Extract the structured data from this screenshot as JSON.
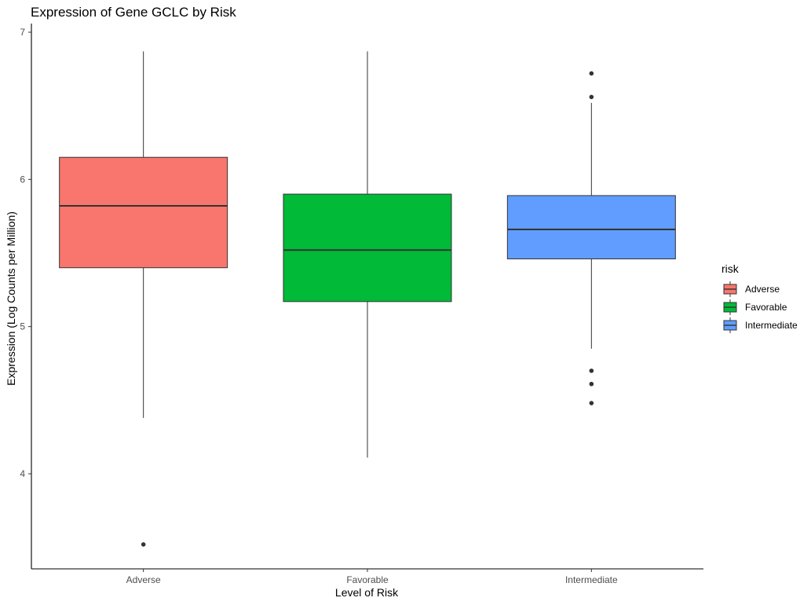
{
  "chart_data": {
    "type": "boxplot",
    "title": "Expression of Gene GCLC by Risk",
    "xlabel": "Level of Risk",
    "ylabel": "Expression (Log Counts per Million)",
    "ylim": [
      3.36,
      7.05
    ],
    "yticks": [
      4,
      5,
      6,
      7
    ],
    "grid": false,
    "categories": [
      "Adverse",
      "Favorable",
      "Intermediate"
    ],
    "series": [
      {
        "name": "Adverse",
        "color": "#F8766D",
        "whisker_low": 4.38,
        "q1": 5.4,
        "median": 5.82,
        "q3": 6.15,
        "whisker_high": 6.87,
        "outliers": [
          3.52
        ]
      },
      {
        "name": "Favorable",
        "color": "#00BA38",
        "whisker_low": 4.11,
        "q1": 5.17,
        "median": 5.52,
        "q3": 5.9,
        "whisker_high": 6.87,
        "outliers": []
      },
      {
        "name": "Intermediate",
        "color": "#619CFF",
        "whisker_low": 4.85,
        "q1": 5.46,
        "median": 5.66,
        "q3": 5.89,
        "whisker_high": 6.52,
        "outliers": [
          6.72,
          6.56,
          4.7,
          4.61,
          4.48
        ]
      }
    ],
    "legend": {
      "title": "risk",
      "position": "right",
      "entries": [
        "Adverse",
        "Favorable",
        "Intermediate"
      ]
    }
  }
}
